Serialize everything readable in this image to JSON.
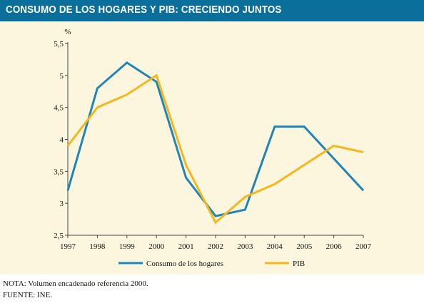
{
  "title": "CONSUMO DE LOS HOGARES Y PIB: CRECIENDO JUNTOS",
  "notes": {
    "nota": "NOTA: Volumen encadenado referencia 2000.",
    "fuente": "FUENTE: INE."
  },
  "colors": {
    "title_bar": "#0a6f9a",
    "panel": "#fdf6df",
    "consumo": "#1f84b8",
    "pib": "#f4b71c"
  },
  "chart_data": {
    "type": "line",
    "title": "CONSUMO DE LOS HOGARES Y PIB: CRECIENDO JUNTOS",
    "ylabel": "%",
    "xlabel": "",
    "x": [
      "1997",
      "1998",
      "1999",
      "2000",
      "2001",
      "2002",
      "2003",
      "2004",
      "2005",
      "2006",
      "2007"
    ],
    "yticks": [
      "2,5",
      "3",
      "3,5",
      "4",
      "4,5",
      "5",
      "5,5"
    ],
    "ylim": [
      2.5,
      5.5
    ],
    "grid": false,
    "legend": "bottom",
    "series": [
      {
        "name": "Consumo de los hogares",
        "color": "#1f84b8",
        "values": [
          3.2,
          4.8,
          5.2,
          4.9,
          3.4,
          2.8,
          2.9,
          4.2,
          4.2,
          3.7,
          3.2
        ]
      },
      {
        "name": "PIB",
        "color": "#f4b71c",
        "values": [
          3.9,
          4.5,
          4.7,
          5.0,
          3.6,
          2.7,
          3.1,
          3.3,
          3.6,
          3.9,
          3.8
        ]
      }
    ]
  }
}
